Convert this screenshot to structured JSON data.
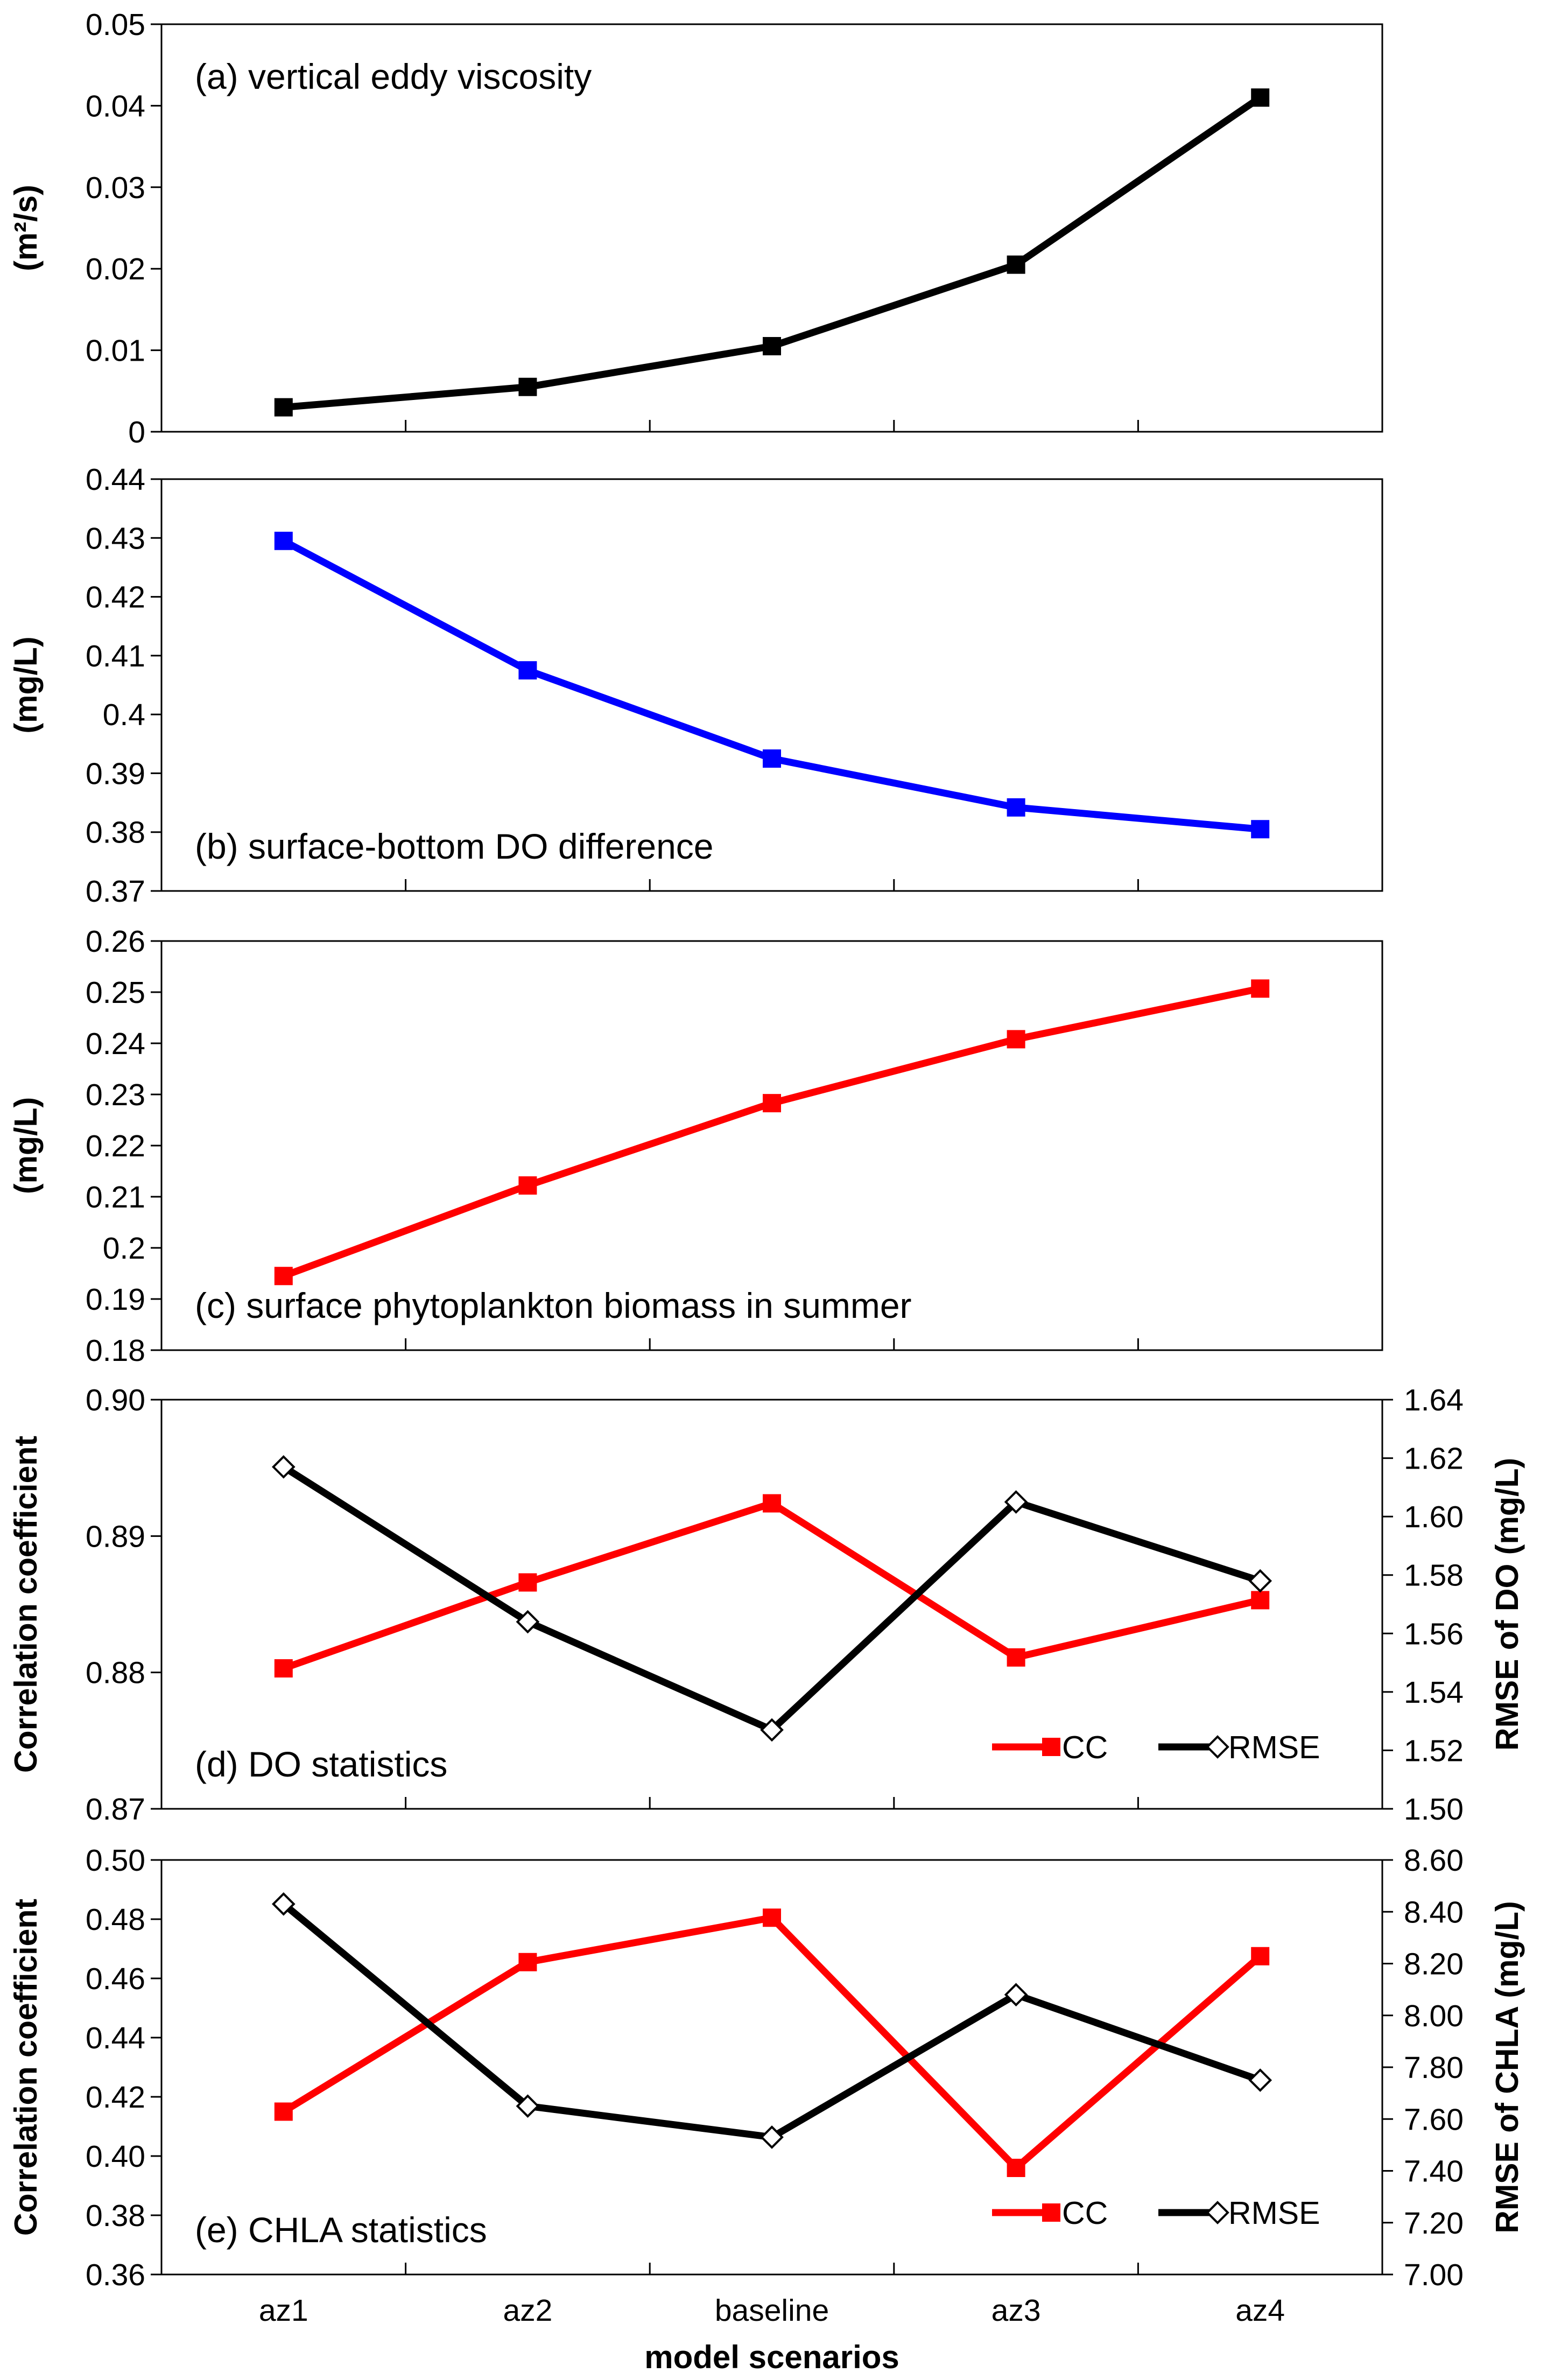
{
  "xlabel": "model scenarios",
  "categories": [
    "az1",
    "az2",
    "baseline",
    "az3",
    "az4"
  ],
  "chart_data": [
    {
      "type": "line",
      "title": "(a) vertical eddy viscosity",
      "ylabel": "(m²/s)",
      "ylim": [
        0,
        0.05
      ],
      "yticks": [
        "0",
        "0.01",
        "0.02",
        "0.03",
        "0.04",
        "0.05"
      ],
      "color": "#000000",
      "values": [
        0.003,
        0.0055,
        0.0105,
        0.0205,
        0.041
      ],
      "title_pos": "top-left"
    },
    {
      "type": "line",
      "title": "(b) surface-bottom DO difference",
      "ylabel": "(mg/L)",
      "ylim": [
        0.37,
        0.44
      ],
      "yticks": [
        "0.37",
        "0.38",
        "0.39",
        "0.4",
        "0.41",
        "0.42",
        "0.43",
        "0.44"
      ],
      "color": "#0000ff",
      "values": [
        0.4295,
        0.4075,
        0.3925,
        0.3842,
        0.3805
      ],
      "title_pos": "bottom-left"
    },
    {
      "type": "line",
      "title": "(c) surface phytoplankton biomass in summer",
      "ylabel": "(mg/L)",
      "ylim": [
        0.18,
        0.26
      ],
      "yticks": [
        "0.18",
        "0.19",
        "0.2",
        "0.21",
        "0.22",
        "0.23",
        "0.24",
        "0.25",
        "0.26"
      ],
      "color": "#ff0000",
      "values": [
        0.1945,
        0.2122,
        0.2283,
        0.2408,
        0.2507
      ],
      "title_pos": "bottom-left"
    },
    {
      "type": "line",
      "title": "(d) DO statistics",
      "ylabel": "Correlation coefficient",
      "ylim": [
        0.87,
        0.9
      ],
      "yticks": [
        "0.87",
        "0.88",
        "0.89",
        "0.90"
      ],
      "y2label": "RMSE of DO (mg/L)",
      "y2lim": [
        1.5,
        1.64
      ],
      "y2ticks": [
        "1.50",
        "1.52",
        "1.54",
        "1.56",
        "1.58",
        "1.60",
        "1.62",
        "1.64"
      ],
      "title_pos": "bottom-left",
      "legend_pos": "bottom-right",
      "series": [
        {
          "name": "CC",
          "axis": "left",
          "color": "#ff0000",
          "marker": "square",
          "values": [
            0.8803,
            0.8866,
            0.8924,
            0.8811,
            0.8853
          ]
        },
        {
          "name": "RMSE",
          "axis": "right",
          "color": "#000000",
          "marker": "diamond",
          "values": [
            1.617,
            1.564,
            1.527,
            1.605,
            1.578
          ]
        }
      ]
    },
    {
      "type": "line",
      "title": "(e) CHLA statistics",
      "ylabel": "Correlation coefficient",
      "ylim": [
        0.36,
        0.5
      ],
      "yticks": [
        "0.36",
        "0.38",
        "0.40",
        "0.42",
        "0.44",
        "0.46",
        "0.48",
        "0.50"
      ],
      "y2label": "RMSE of CHLA (mg/L)",
      "y2lim": [
        7.0,
        8.6
      ],
      "y2ticks": [
        "7.00",
        "7.20",
        "7.40",
        "7.60",
        "7.80",
        "8.00",
        "8.20",
        "8.40",
        "8.60"
      ],
      "title_pos": "bottom-left",
      "legend_pos": "bottom-right",
      "series": [
        {
          "name": "CC",
          "axis": "left",
          "color": "#ff0000",
          "marker": "square",
          "values": [
            0.415,
            0.4655,
            0.4805,
            0.396,
            0.4675
          ]
        },
        {
          "name": "RMSE",
          "axis": "right",
          "color": "#000000",
          "marker": "diamond",
          "values": [
            8.43,
            7.65,
            7.53,
            8.08,
            7.75
          ]
        }
      ]
    }
  ]
}
